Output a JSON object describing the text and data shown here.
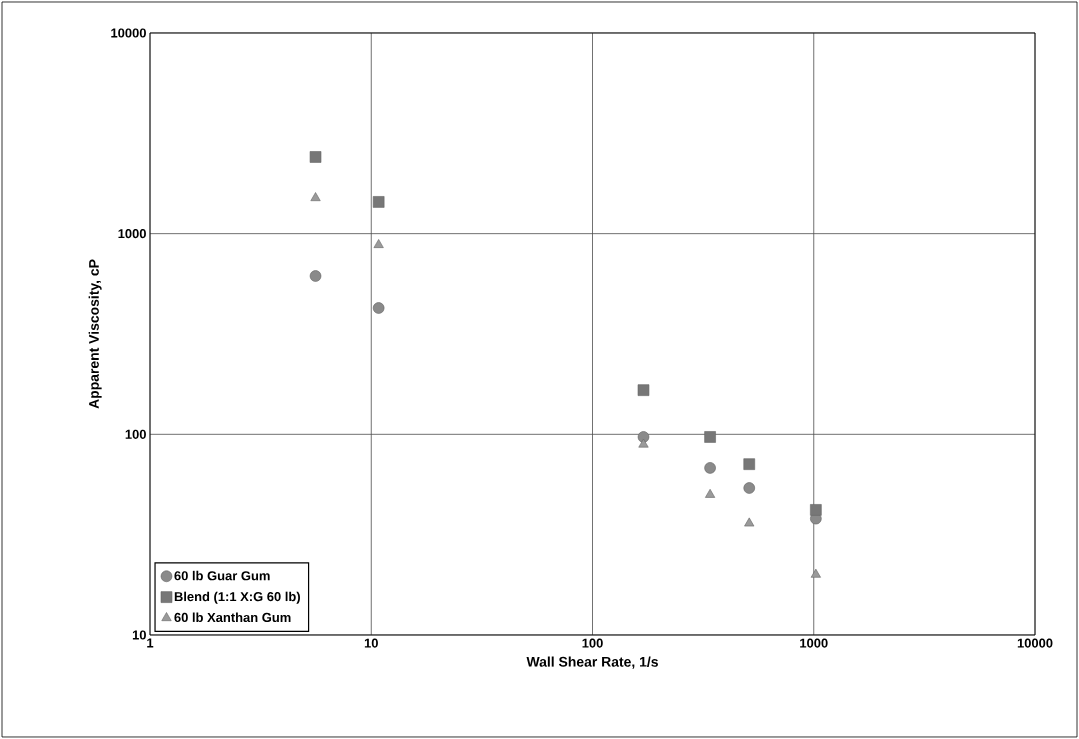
{
  "chart_data": {
    "type": "scatter",
    "xlabel": "Wall Shear Rate, 1/s",
    "ylabel": "Apparent Viscosity, cP",
    "x": [
      5.6,
      10.8,
      170,
      340,
      511,
      1022
    ],
    "series": [
      {
        "name": "60 lb Guar Gum",
        "color": "#8a8a8a",
        "marker": "circle",
        "values": [
          615,
          426,
          97,
          68,
          54,
          38
        ]
      },
      {
        "name": "Blend (1:1 X:G 60 lb)",
        "color": "#777777",
        "marker": "square",
        "values": [
          2410,
          1439,
          166,
          97,
          71,
          42
        ]
      },
      {
        "name": "60 lb Xanthan Gum",
        "color": "#9a9a9a",
        "marker": "triangle",
        "values": [
          1506,
          879,
          89,
          50,
          36,
          20
        ]
      }
    ],
    "log": "xy",
    "xlim": [
      1,
      10000
    ],
    "ylim": [
      10,
      10000
    ],
    "xticks": [
      1,
      10,
      100,
      1000,
      10000
    ],
    "yticks": [
      10,
      100,
      1000,
      10000
    ],
    "grid": true,
    "legend": "bottom left"
  }
}
